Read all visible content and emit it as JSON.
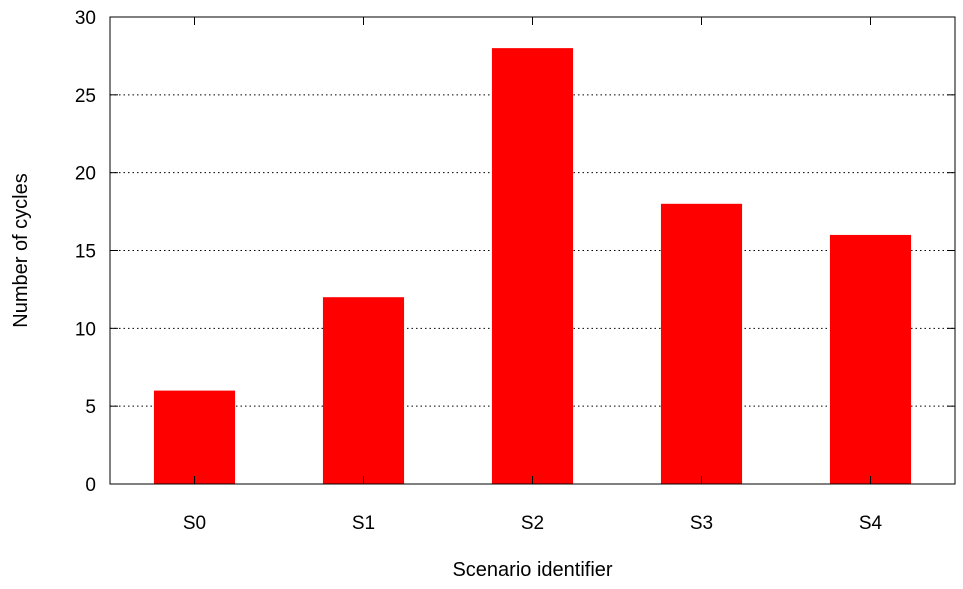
{
  "chart_data": {
    "type": "bar",
    "categories": [
      "S0",
      "S1",
      "S2",
      "S3",
      "S4"
    ],
    "values": [
      6,
      12,
      28,
      18,
      16
    ],
    "xlabel": "Scenario identifier",
    "ylabel": "Number of cycles",
    "ylim": [
      0,
      30
    ],
    "yticks": [
      0,
      5,
      10,
      15,
      20,
      25,
      30
    ],
    "grid": true,
    "bar_color": "#ff0000"
  }
}
